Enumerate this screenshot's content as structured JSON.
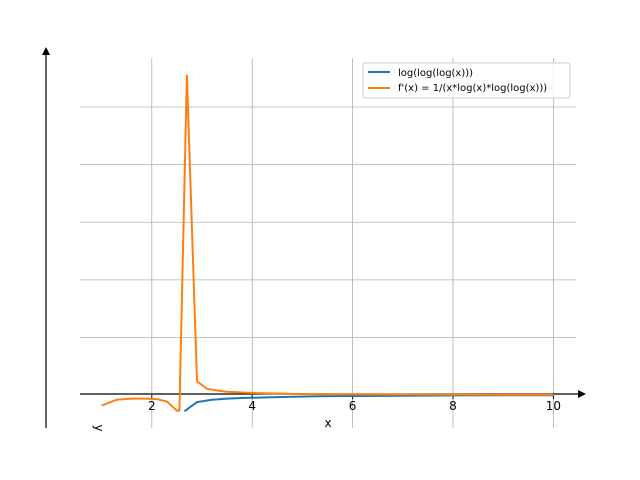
{
  "chart_data": {
    "type": "line",
    "title": "",
    "xlabel": "x",
    "ylabel": "y",
    "xlim": [
      0.57,
      10.45
    ],
    "ylim": [
      -0.57,
      5.85
    ],
    "grid": true,
    "legend_position": "top-right",
    "x_ticks": [
      2,
      4,
      6,
      8,
      10
    ],
    "y_ticks": [
      1,
      2,
      3,
      4,
      5
    ],
    "series": [
      {
        "name": "log(log(log(x)))",
        "color": "#1f77b4",
        "x": [
          2.65,
          2.9,
          3.2,
          3.5,
          3.8,
          4.2,
          4.7,
          5.3,
          6.0,
          7.0,
          8.0,
          9.0,
          10.0
        ],
        "y": [
          -0.28,
          -0.12,
          -0.08,
          -0.06,
          -0.05,
          -0.04,
          -0.03,
          -0.02,
          -0.015,
          -0.01,
          -0.005,
          -0.003,
          -0.001
        ]
      },
      {
        "name": "f'(x) = 1/(x*log(x)*log(log(x)))",
        "color": "#ff7f0e",
        "x": [
          1.0,
          1.3,
          1.6,
          1.9,
          2.1,
          2.3,
          2.5,
          2.55,
          2.7,
          2.9,
          3.1,
          3.3,
          3.5,
          3.7,
          3.9,
          4.3,
          5.0,
          6.0,
          7.0,
          8.0,
          9.0,
          10.0
        ],
        "y": [
          -0.18,
          -0.08,
          -0.06,
          -0.06,
          -0.07,
          -0.11,
          -0.27,
          -0.27,
          5.55,
          0.24,
          0.11,
          0.08,
          0.06,
          0.05,
          0.04,
          0.03,
          0.02,
          0.015,
          0.012,
          0.01,
          0.008,
          0.007
        ]
      }
    ]
  }
}
